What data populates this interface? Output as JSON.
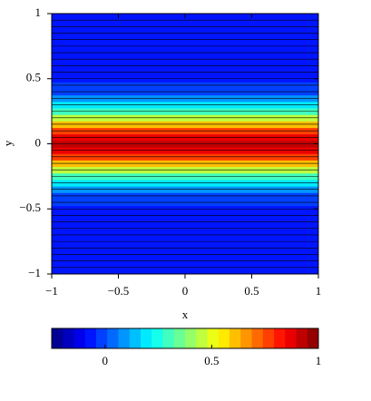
{
  "chart_data": {
    "type": "contour",
    "x_label": "x",
    "y_label": "y",
    "xlim": [
      -1,
      1
    ],
    "ylim": [
      -1,
      1
    ],
    "xticks": [
      {
        "value": -1,
        "label": "−1"
      },
      {
        "value": -0.5,
        "label": "−0.5"
      },
      0,
      0.5,
      1
    ],
    "yticks": [
      {
        "value": -1,
        "label": "−1"
      },
      {
        "value": -0.5,
        "label": "−0.5"
      },
      0,
      0.5,
      1
    ],
    "y": [
      -1,
      -0.95,
      -0.9,
      -0.85,
      -0.8,
      -0.75,
      -0.7,
      -0.65,
      -0.6,
      -0.55,
      -0.5,
      -0.45,
      -0.4,
      -0.35,
      -0.3,
      -0.25,
      -0.2,
      -0.15,
      -0.1,
      -0.05,
      0,
      0.05,
      0.1,
      0.15,
      0.2,
      0.25,
      0.3,
      0.35,
      0.4,
      0.45,
      0.5,
      0.55,
      0.6,
      0.65,
      0.7,
      0.75,
      0.8,
      0.85,
      0.9,
      0.95,
      1
    ],
    "values": [
      -0.07,
      -0.07,
      -0.07,
      -0.07,
      -0.07,
      -0.07,
      -0.07,
      -0.07,
      -0.07,
      -0.06,
      -0.05,
      -0.03,
      0.01,
      0.07,
      0.17,
      0.3,
      0.46,
      0.63,
      0.78,
      0.87,
      0.93,
      0.87,
      0.78,
      0.63,
      0.46,
      0.3,
      0.17,
      0.07,
      0.01,
      -0.03,
      -0.05,
      -0.06,
      -0.07,
      -0.07,
      -0.07,
      -0.07,
      -0.07,
      -0.07,
      -0.07,
      -0.07,
      -0.07
    ],
    "colormap": "jet",
    "clim": [
      -0.25,
      1
    ],
    "cticks": [
      0,
      0.5,
      1
    ]
  }
}
